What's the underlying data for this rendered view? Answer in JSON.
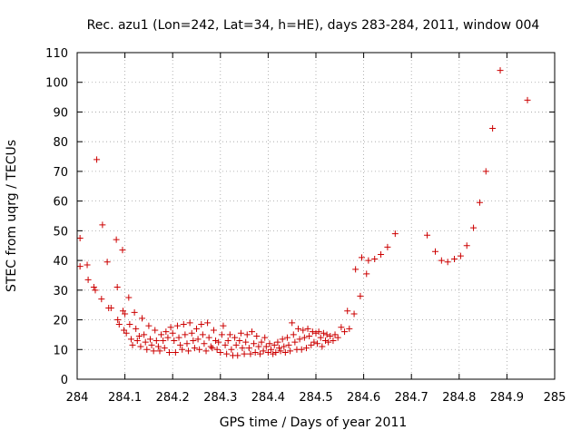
{
  "chart_data": {
    "type": "scatter",
    "title": "Rec. azu1 (Lon=242, Lat=34, h=HE), days 283-284, 2011, window 004",
    "xlabel": "GPS time / Days of year 2011",
    "ylabel": "STEC from uqrg / TECUs",
    "xlim": [
      284,
      285
    ],
    "ylim": [
      0,
      110
    ],
    "xticks": [
      284,
      284.1,
      284.2,
      284.3,
      284.4,
      284.5,
      284.6,
      284.7,
      284.8,
      284.9,
      285
    ],
    "xtick_labels": [
      "284",
      "284.1",
      "284.2",
      "284.3",
      "284.4",
      "284.5",
      "284.6",
      "284.7",
      "284.8",
      "284.9",
      "285"
    ],
    "yticks": [
      0,
      10,
      20,
      30,
      40,
      50,
      60,
      70,
      80,
      90,
      100,
      110
    ],
    "ytick_labels": [
      "0",
      "10",
      "20",
      "30",
      "40",
      "50",
      "60",
      "70",
      "80",
      "90",
      "100",
      "110"
    ],
    "grid": true,
    "marker": "+",
    "color": "#cc0000",
    "series": [
      {
        "name": "STEC",
        "points": [
          [
            284.006,
            47.5
          ],
          [
            284.006,
            38
          ],
          [
            284.021,
            38.5
          ],
          [
            284.023,
            33.5
          ],
          [
            284.035,
            31
          ],
          [
            284.038,
            30
          ],
          [
            284.041,
            74
          ],
          [
            284.051,
            27
          ],
          [
            284.053,
            52
          ],
          [
            284.063,
            39.5
          ],
          [
            284.066,
            24
          ],
          [
            284.071,
            24
          ],
          [
            284.082,
            47
          ],
          [
            284.084,
            31
          ],
          [
            284.085,
            20
          ],
          [
            284.088,
            18.5
          ],
          [
            284.095,
            43.5
          ],
          [
            284.096,
            23
          ],
          [
            284.098,
            16.5
          ],
          [
            284.1,
            22
          ],
          [
            284.103,
            15.5
          ],
          [
            284.108,
            27.5
          ],
          [
            284.11,
            18.5
          ],
          [
            284.113,
            13.5
          ],
          [
            284.116,
            11.5
          ],
          [
            284.12,
            22.5
          ],
          [
            284.123,
            17
          ],
          [
            284.126,
            13
          ],
          [
            284.13,
            14.5
          ],
          [
            284.133,
            11
          ],
          [
            284.136,
            20.5
          ],
          [
            284.14,
            15
          ],
          [
            284.143,
            12.5
          ],
          [
            284.146,
            10
          ],
          [
            284.15,
            18
          ],
          [
            284.153,
            13.5
          ],
          [
            284.156,
            11.5
          ],
          [
            284.16,
            9.5
          ],
          [
            284.163,
            16.5
          ],
          [
            284.166,
            13
          ],
          [
            284.17,
            11
          ],
          [
            284.173,
            9.5
          ],
          [
            284.176,
            15
          ],
          [
            284.18,
            13
          ],
          [
            284.183,
            10.5
          ],
          [
            284.186,
            16
          ],
          [
            284.19,
            14
          ],
          [
            284.193,
            9
          ],
          [
            284.196,
            17.5
          ],
          [
            284.2,
            15.5
          ],
          [
            284.203,
            13
          ],
          [
            284.206,
            9
          ],
          [
            284.21,
            18
          ],
          [
            284.213,
            14
          ],
          [
            284.216,
            11.5
          ],
          [
            284.22,
            10
          ],
          [
            284.223,
            18.5
          ],
          [
            284.226,
            15
          ],
          [
            284.23,
            12
          ],
          [
            284.233,
            9.5
          ],
          [
            284.236,
            19
          ],
          [
            284.24,
            15.5
          ],
          [
            284.243,
            13
          ],
          [
            284.246,
            10.5
          ],
          [
            284.25,
            17
          ],
          [
            284.253,
            13.5
          ],
          [
            284.256,
            10
          ],
          [
            284.26,
            18.5
          ],
          [
            284.263,
            15
          ],
          [
            284.266,
            12
          ],
          [
            284.27,
            9.5
          ],
          [
            284.273,
            19
          ],
          [
            284.276,
            14
          ],
          [
            284.28,
            11
          ],
          [
            284.283,
            10.5
          ],
          [
            284.286,
            16.5
          ],
          [
            284.29,
            13
          ],
          [
            284.293,
            10
          ],
          [
            284.296,
            12.5
          ],
          [
            284.3,
            9
          ],
          [
            284.303,
            15
          ],
          [
            284.306,
            18
          ],
          [
            284.31,
            11.5
          ],
          [
            284.313,
            8.5
          ],
          [
            284.316,
            13
          ],
          [
            284.32,
            15
          ],
          [
            284.323,
            10
          ],
          [
            284.326,
            8
          ],
          [
            284.33,
            14
          ],
          [
            284.333,
            11.5
          ],
          [
            284.336,
            8
          ],
          [
            284.34,
            13
          ],
          [
            284.343,
            15.5
          ],
          [
            284.346,
            10.5
          ],
          [
            284.35,
            8.5
          ],
          [
            284.353,
            12.5
          ],
          [
            284.356,
            15
          ],
          [
            284.36,
            10.5
          ],
          [
            284.363,
            8.5
          ],
          [
            284.366,
            16
          ],
          [
            284.37,
            12
          ],
          [
            284.373,
            9
          ],
          [
            284.376,
            14.5
          ],
          [
            284.38,
            11
          ],
          [
            284.383,
            8.5
          ],
          [
            284.386,
            12.5
          ],
          [
            284.39,
            9.5
          ],
          [
            284.393,
            14
          ],
          [
            284.396,
            11
          ],
          [
            284.4,
            9
          ],
          [
            284.403,
            12
          ],
          [
            284.406,
            10
          ],
          [
            284.41,
            8.5
          ],
          [
            284.413,
            11.5
          ],
          [
            284.416,
            9
          ],
          [
            284.42,
            12.5
          ],
          [
            284.423,
            10.5
          ],
          [
            284.426,
            9.5
          ],
          [
            284.43,
            13.5
          ],
          [
            284.433,
            11
          ],
          [
            284.436,
            9
          ],
          [
            284.44,
            14
          ],
          [
            284.443,
            11.5
          ],
          [
            284.446,
            9.5
          ],
          [
            284.45,
            19
          ],
          [
            284.453,
            15
          ],
          [
            284.456,
            12.5
          ],
          [
            284.46,
            10
          ],
          [
            284.463,
            17
          ],
          [
            284.466,
            13.5
          ],
          [
            284.47,
            10
          ],
          [
            284.473,
            16.5
          ],
          [
            284.476,
            14
          ],
          [
            284.48,
            10.5
          ],
          [
            284.483,
            17
          ],
          [
            284.486,
            14.5
          ],
          [
            284.49,
            11.5
          ],
          [
            284.493,
            16
          ],
          [
            284.496,
            12.5
          ],
          [
            284.5,
            15.5
          ],
          [
            284.503,
            12
          ],
          [
            284.506,
            16
          ],
          [
            284.51,
            14
          ],
          [
            284.513,
            11
          ],
          [
            284.516,
            15.5
          ],
          [
            284.52,
            13
          ],
          [
            284.523,
            15
          ],
          [
            284.526,
            12.5
          ],
          [
            284.53,
            14.5
          ],
          [
            284.536,
            13
          ],
          [
            284.54,
            15
          ],
          [
            284.546,
            14
          ],
          [
            284.553,
            17.5
          ],
          [
            284.56,
            16
          ],
          [
            284.566,
            23
          ],
          [
            284.57,
            17
          ],
          [
            284.58,
            22
          ],
          [
            284.583,
            37
          ],
          [
            284.593,
            28
          ],
          [
            284.596,
            41
          ],
          [
            284.606,
            35.5
          ],
          [
            284.61,
            40
          ],
          [
            284.623,
            40.5
          ],
          [
            284.636,
            42
          ],
          [
            284.65,
            44.5
          ],
          [
            284.666,
            49
          ],
          [
            284.733,
            48.5
          ],
          [
            284.75,
            43
          ],
          [
            284.763,
            40
          ],
          [
            284.776,
            39.5
          ],
          [
            284.79,
            40.5
          ],
          [
            284.803,
            41.5
          ],
          [
            284.816,
            45
          ],
          [
            284.83,
            51
          ],
          [
            284.843,
            59.5
          ],
          [
            284.856,
            70
          ],
          [
            284.87,
            84.5
          ],
          [
            284.886,
            104
          ],
          [
            284.943,
            94
          ]
        ]
      }
    ]
  }
}
